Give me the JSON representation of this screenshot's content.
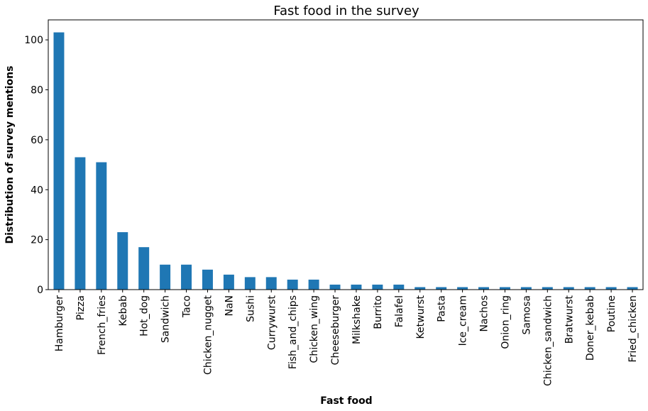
{
  "chart_data": {
    "type": "bar",
    "title": "Fast food in the survey",
    "xlabel": "Fast food",
    "ylabel": "Distribution of survey mentions",
    "categories": [
      "Hamburger",
      "Pizza",
      "French_fries",
      "Kebab",
      "Hot_dog",
      "Sandwich",
      "Taco",
      "Chicken_nugget",
      "NaN",
      "Sushi",
      "Currywurst",
      "Fish_and_chips",
      "Chicken_wing",
      "Cheeseburger",
      "Milkshake",
      "Burrito",
      "Falafel",
      "Ketwurst",
      "Pasta",
      "Ice_cream",
      "Nachos",
      "Onion_ring",
      "Samosa",
      "Chicken_sandwich",
      "Bratwurst",
      "Doner_kebab",
      "Poutine",
      "Fried_chicken"
    ],
    "values": [
      103,
      53,
      51,
      23,
      17,
      10,
      10,
      8,
      6,
      5,
      5,
      4,
      4,
      2,
      2,
      2,
      2,
      1,
      1,
      1,
      1,
      1,
      1,
      1,
      1,
      1,
      1,
      1
    ],
    "ylim": [
      0,
      108
    ],
    "yticks": [
      0,
      20,
      40,
      60,
      80,
      100
    ],
    "bar_color": "#1f77b4",
    "grid": false,
    "legend": "none"
  }
}
